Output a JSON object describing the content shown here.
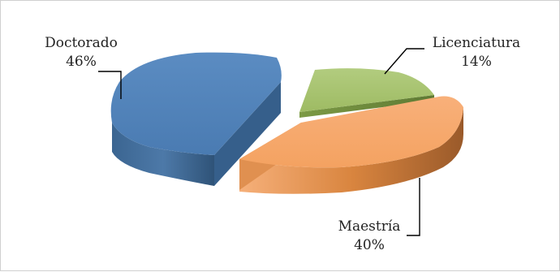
{
  "chart_data": {
    "type": "pie",
    "style": "3d-exploded",
    "legend": "none",
    "slices": [
      {
        "category": "Doctorado",
        "value": 46,
        "percent_label": "46%",
        "color": "#4f81bd"
      },
      {
        "category": "Licenciatura",
        "value": 14,
        "percent_label": "14%",
        "color": "#9bbb59"
      },
      {
        "category": "Maestría",
        "value": 40,
        "percent_label": "40%",
        "color": "#f79646"
      }
    ]
  }
}
